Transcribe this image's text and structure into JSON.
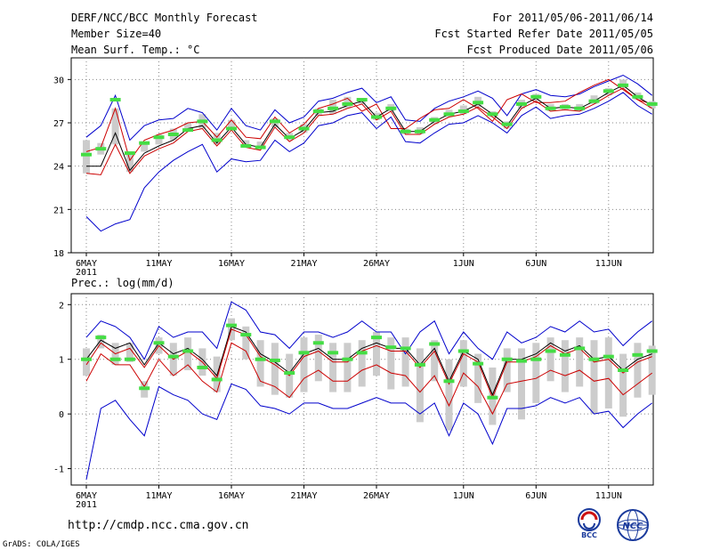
{
  "header": {
    "title": "DERF/NCC/BCC Monthly Forecast",
    "member_size": "Member Size=40",
    "variable": "Mean Surf. Temp.: °C",
    "period": "For 2011/05/06-2011/06/14",
    "fcst_started": "Fcst Started Refer Date 2011/05/05",
    "fcst_produced": "Fcst Produced Date 2011/05/06"
  },
  "footer": {
    "url": "http://cmdp.ncc.cma.gov.cn",
    "grads": "GrADS: COLA/IGES",
    "logo_bcc": "BCC",
    "logo_ncc": "NCC"
  },
  "colors": {
    "ensemble_bound": "#0000cc",
    "percentile_line": "#cc0000",
    "mean_line": "#000000",
    "spread_bar": "#cccccc",
    "median_marker": "#44dd44"
  },
  "chart_data": [
    {
      "type": "line",
      "title": "Mean Surf. Temp.: °C",
      "ylim": [
        18,
        31.5
      ],
      "yticks": [
        18,
        21,
        24,
        27,
        30
      ],
      "x_days": 40,
      "xtick_days": [
        0,
        5,
        10,
        15,
        20,
        26,
        31,
        36
      ],
      "xtick_labels": [
        "6MAY",
        "11MAY",
        "16MAY",
        "21MAY",
        "26MAY",
        "1JUN",
        "6JUN",
        "11JUN"
      ],
      "xtick_sublabel": "2011",
      "series": [
        {
          "name": "upper",
          "values": [
            26.0,
            26.8,
            28.9,
            25.8,
            26.8,
            27.2,
            27.3,
            28.0,
            27.7,
            26.5,
            28.0,
            26.8,
            26.5,
            27.9,
            27.0,
            27.4,
            28.5,
            28.7,
            29.1,
            29.4,
            28.4,
            28.8,
            27.2,
            27.1,
            28.0,
            28.5,
            28.8,
            29.2,
            28.7,
            27.5,
            29.0,
            29.3,
            28.9,
            28.8,
            29.0,
            29.5,
            29.9,
            30.3,
            29.7,
            28.9
          ]
        },
        {
          "name": "pct_high",
          "values": [
            25.0,
            25.3,
            28.0,
            24.4,
            25.8,
            26.2,
            26.5,
            27.0,
            27.1,
            26.0,
            27.2,
            26.0,
            25.9,
            27.4,
            26.3,
            26.9,
            28.0,
            28.3,
            28.7,
            27.8,
            28.3,
            26.6,
            26.6,
            27.3,
            27.9,
            28.0,
            28.6,
            28.0,
            27.1,
            28.6,
            29.0,
            28.4,
            28.4,
            28.5,
            29.1,
            29.6,
            30.0,
            29.3,
            28.6,
            28.3
          ]
        },
        {
          "name": "mean",
          "values": [
            24.0,
            24.0,
            26.3,
            23.7,
            24.9,
            25.4,
            25.8,
            26.6,
            26.8,
            25.6,
            26.7,
            25.5,
            25.3,
            26.9,
            25.9,
            26.5,
            27.7,
            27.8,
            28.2,
            28.5,
            27.4,
            28.0,
            26.4,
            26.4,
            27.1,
            27.6,
            27.8,
            28.3,
            27.6,
            26.8,
            28.2,
            28.7,
            28.0,
            28.1,
            28.0,
            28.5,
            29.1,
            29.6,
            28.8,
            28.2
          ]
        },
        {
          "name": "pct_low",
          "values": [
            23.5,
            23.4,
            25.5,
            23.5,
            24.7,
            25.2,
            25.6,
            26.4,
            26.6,
            25.4,
            26.5,
            25.3,
            25.1,
            26.7,
            25.7,
            26.3,
            27.5,
            27.6,
            28.0,
            28.3,
            27.2,
            27.8,
            26.2,
            26.2,
            26.9,
            27.4,
            27.6,
            28.1,
            27.4,
            26.6,
            28.0,
            28.5,
            27.8,
            27.9,
            27.8,
            28.3,
            28.9,
            29.4,
            28.6,
            28.0
          ]
        },
        {
          "name": "lower",
          "values": [
            20.5,
            19.5,
            20.0,
            20.3,
            22.5,
            23.6,
            24.4,
            25.0,
            25.5,
            23.6,
            24.5,
            24.3,
            24.4,
            25.8,
            25.0,
            25.6,
            26.8,
            27.0,
            27.5,
            27.7,
            26.6,
            27.4,
            25.7,
            25.6,
            26.3,
            26.9,
            27.0,
            27.5,
            27.0,
            26.3,
            27.5,
            28.1,
            27.3,
            27.5,
            27.6,
            28.0,
            28.5,
            29.1,
            28.2,
            27.6
          ]
        }
      ],
      "spread_bars": [
        [
          23.5,
          25.8
        ],
        [
          24.8,
          25.6
        ],
        [
          25.5,
          28.0
        ],
        [
          23.6,
          24.9
        ],
        [
          25.0,
          25.6
        ],
        [
          25.5,
          26.2
        ],
        [
          25.8,
          26.6
        ],
        [
          26.4,
          27.0
        ],
        [
          26.6,
          27.6
        ],
        [
          25.5,
          26.3
        ],
        [
          26.5,
          27.2
        ],
        [
          25.3,
          25.8
        ],
        [
          25.2,
          25.7
        ],
        [
          26.7,
          27.3
        ],
        [
          25.8,
          26.3
        ],
        [
          26.3,
          26.9
        ],
        [
          27.5,
          28.0
        ],
        [
          27.6,
          28.6
        ],
        [
          28.0,
          28.8
        ],
        [
          28.3,
          28.6
        ],
        [
          27.2,
          27.7
        ],
        [
          27.8,
          28.3
        ],
        [
          26.2,
          26.6
        ],
        [
          26.2,
          26.7
        ],
        [
          26.9,
          27.4
        ],
        [
          27.4,
          27.9
        ],
        [
          27.6,
          28.2
        ],
        [
          28.1,
          28.8
        ],
        [
          27.4,
          27.8
        ],
        [
          26.6,
          27.1
        ],
        [
          28.0,
          28.6
        ],
        [
          28.5,
          29.0
        ],
        [
          27.8,
          28.3
        ],
        [
          27.9,
          28.3
        ],
        [
          27.8,
          28.3
        ],
        [
          28.3,
          28.9
        ],
        [
          28.9,
          29.4
        ],
        [
          29.4,
          30.0
        ],
        [
          28.6,
          29.1
        ],
        [
          28.0,
          28.5
        ]
      ],
      "median_markers": [
        24.8,
        25.2,
        28.6,
        24.9,
        25.6,
        26.0,
        26.2,
        26.5,
        27.1,
        25.8,
        26.6,
        25.4,
        25.3,
        27.1,
        26.0,
        26.6,
        27.8,
        28.0,
        28.3,
        28.6,
        27.4,
        28.0,
        26.4,
        26.4,
        27.2,
        27.6,
        27.8,
        28.4,
        27.6,
        26.9,
        28.3,
        28.8,
        28.0,
        28.1,
        28.0,
        28.5,
        29.2,
        29.6,
        28.8,
        28.3
      ]
    },
    {
      "type": "line",
      "title": "Prec.: log(mm/d)",
      "ylim": [
        -1.3,
        2.2
      ],
      "yticks": [
        -1,
        0,
        1,
        2
      ],
      "x_days": 40,
      "xtick_days": [
        0,
        5,
        10,
        15,
        20,
        26,
        31,
        36
      ],
      "xtick_labels": [
        "6MAY",
        "11MAY",
        "16MAY",
        "21MAY",
        "26MAY",
        "1JUN",
        "6JUN",
        "11JUN"
      ],
      "xtick_sublabel": "2011",
      "series": [
        {
          "name": "upper",
          "values": [
            1.4,
            1.7,
            1.6,
            1.4,
            1.0,
            1.6,
            1.4,
            1.5,
            1.5,
            1.2,
            2.05,
            1.9,
            1.5,
            1.45,
            1.2,
            1.5,
            1.5,
            1.4,
            1.5,
            1.7,
            1.5,
            1.5,
            1.1,
            1.5,
            1.7,
            1.1,
            1.5,
            1.2,
            1.0,
            1.5,
            1.3,
            1.4,
            1.6,
            1.5,
            1.7,
            1.5,
            1.55,
            1.25,
            1.5,
            1.7
          ]
        },
        {
          "name": "mean",
          "values": [
            1.0,
            1.35,
            1.2,
            1.3,
            0.9,
            1.3,
            1.1,
            1.2,
            1.0,
            0.7,
            1.6,
            1.5,
            1.1,
            0.95,
            0.75,
            1.1,
            1.2,
            1.0,
            1.0,
            1.2,
            1.3,
            1.2,
            1.2,
            0.9,
            1.2,
            0.6,
            1.15,
            1.0,
            0.35,
            1.0,
            1.0,
            1.1,
            1.3,
            1.15,
            1.25,
            1.0,
            1.05,
            0.8,
            1.0,
            1.1
          ]
        },
        {
          "name": "pct_mid",
          "values": [
            0.9,
            1.3,
            1.1,
            1.2,
            0.85,
            1.25,
            1.0,
            1.15,
            0.95,
            0.65,
            1.55,
            1.45,
            1.05,
            0.9,
            0.7,
            1.05,
            1.15,
            0.95,
            0.95,
            1.15,
            1.25,
            1.15,
            1.15,
            0.85,
            1.15,
            0.55,
            1.1,
            0.95,
            0.3,
            0.95,
            0.95,
            1.05,
            1.25,
            1.1,
            1.2,
            0.95,
            1.0,
            0.75,
            0.95,
            1.05
          ]
        },
        {
          "name": "pct_low",
          "values": [
            0.6,
            1.1,
            0.9,
            0.9,
            0.5,
            1.0,
            0.7,
            0.9,
            0.6,
            0.4,
            1.3,
            1.15,
            0.6,
            0.5,
            0.3,
            0.65,
            0.8,
            0.6,
            0.6,
            0.8,
            0.9,
            0.75,
            0.7,
            0.4,
            0.7,
            0.15,
            0.75,
            0.5,
            0.0,
            0.55,
            0.6,
            0.65,
            0.8,
            0.7,
            0.8,
            0.6,
            0.65,
            0.35,
            0.55,
            0.75
          ]
        },
        {
          "name": "lower",
          "values": [
            -1.2,
            0.1,
            0.25,
            -0.1,
            -0.4,
            0.5,
            0.35,
            0.25,
            -0.0,
            -0.1,
            0.55,
            0.45,
            0.15,
            0.1,
            -0.0,
            0.2,
            0.2,
            0.1,
            0.1,
            0.2,
            0.3,
            0.2,
            0.2,
            -0.0,
            0.2,
            -0.4,
            0.2,
            0.0,
            -0.55,
            0.1,
            0.1,
            0.15,
            0.3,
            0.2,
            0.3,
            0.0,
            0.05,
            -0.25,
            0.0,
            0.2
          ]
        }
      ],
      "spread_bars": [
        [
          0.7,
          1.2
        ],
        [
          1.2,
          1.45
        ],
        [
          0.9,
          1.3
        ],
        [
          0.95,
          1.3
        ],
        [
          0.3,
          0.6
        ],
        [
          1.1,
          1.4
        ],
        [
          0.7,
          1.3
        ],
        [
          0.8,
          1.4
        ],
        [
          0.7,
          1.2
        ],
        [
          0.4,
          1.05
        ],
        [
          1.35,
          1.75
        ],
        [
          1.0,
          1.6
        ],
        [
          0.5,
          1.35
        ],
        [
          0.35,
          1.3
        ],
        [
          0.3,
          1.1
        ],
        [
          0.4,
          1.4
        ],
        [
          0.6,
          1.45
        ],
        [
          0.4,
          1.3
        ],
        [
          0.4,
          1.3
        ],
        [
          0.5,
          1.35
        ],
        [
          0.7,
          1.5
        ],
        [
          0.45,
          1.4
        ],
        [
          0.5,
          1.4
        ],
        [
          -0.15,
          1.2
        ],
        [
          0.6,
          1.35
        ],
        [
          -0.3,
          1.0
        ],
        [
          0.5,
          1.35
        ],
        [
          0.2,
          1.1
        ],
        [
          -0.2,
          0.85
        ],
        [
          0.4,
          1.2
        ],
        [
          -0.1,
          1.2
        ],
        [
          0.2,
          1.3
        ],
        [
          0.6,
          1.4
        ],
        [
          0.4,
          1.35
        ],
        [
          0.5,
          1.4
        ],
        [
          0.0,
          1.35
        ],
        [
          0.1,
          1.4
        ],
        [
          -0.05,
          1.1
        ],
        [
          0.3,
          1.3
        ],
        [
          0.35,
          1.25
        ]
      ],
      "median_markers": [
        1.0,
        1.4,
        1.0,
        1.0,
        0.47,
        1.3,
        1.05,
        1.15,
        0.85,
        0.63,
        1.62,
        1.45,
        1.0,
        0.98,
        0.75,
        1.12,
        1.3,
        1.12,
        1.0,
        1.12,
        1.4,
        1.22,
        1.2,
        0.9,
        1.28,
        0.6,
        1.15,
        0.92,
        0.3,
        1.0,
        0.97,
        1.0,
        1.15,
        1.08,
        1.2,
        1.0,
        1.05,
        0.8,
        1.08,
        1.15
      ]
    }
  ]
}
